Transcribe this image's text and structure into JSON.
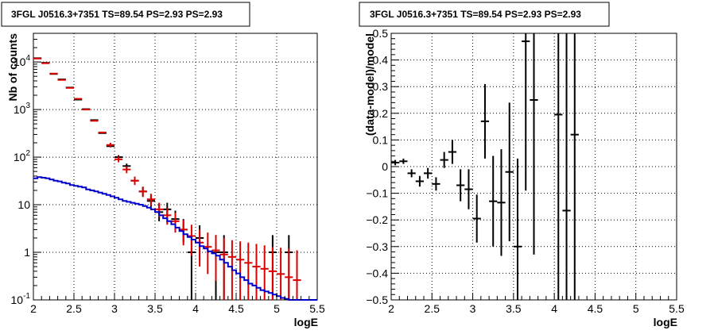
{
  "chart_data": [
    {
      "type": "scatter",
      "title": "3FGL J0516.3+7351 TS=89.54 PS=2.93 PS=2.93",
      "xlabel": "logE",
      "ylabel": "Nb of counts",
      "xlim": [
        2,
        5.5
      ],
      "ylim": [
        0.1,
        40000
      ],
      "yscale": "log",
      "grid": true,
      "x_ticks": [
        {
          "v": 2,
          "label": "2"
        },
        {
          "v": 2.5,
          "label": "2.5"
        },
        {
          "v": 3,
          "label": "3"
        },
        {
          "v": 3.5,
          "label": "3.5"
        },
        {
          "v": 4,
          "label": "4"
        },
        {
          "v": 4.5,
          "label": "4.5"
        },
        {
          "v": 5,
          "label": "5"
        },
        {
          "v": 5.5,
          "label": "5.5"
        }
      ],
      "y_ticks": [
        {
          "v": 0.1,
          "base": "10",
          "exp": "-1"
        },
        {
          "v": 1,
          "base": "1",
          "exp": ""
        },
        {
          "v": 10,
          "base": "10",
          "exp": ""
        },
        {
          "v": 100,
          "base": "10",
          "exp": "2"
        },
        {
          "v": 1000,
          "base": "10",
          "exp": "3"
        },
        {
          "v": 10000,
          "base": "10",
          "exp": "4"
        }
      ],
      "series": [
        {
          "role": "counts",
          "color": "#000000",
          "points": [
            {
              "x": 2.05,
              "y": 12000
            },
            {
              "x": 2.15,
              "y": 9600
            },
            {
              "x": 2.25,
              "y": 5600
            },
            {
              "x": 2.35,
              "y": 4300
            },
            {
              "x": 2.45,
              "y": 2900
            },
            {
              "x": 2.55,
              "y": 1620
            },
            {
              "x": 2.65,
              "y": 1020
            },
            {
              "x": 2.75,
              "y": 600
            },
            {
              "x": 2.85,
              "y": 320
            },
            {
              "x": 2.95,
              "y": 170
            },
            {
              "x": 3.05,
              "y": 100,
              "lo": 90,
              "hi": 110
            },
            {
              "x": 3.15,
              "y": 65,
              "lo": 57,
              "hi": 73
            },
            {
              "x": 3.25,
              "y": 32,
              "lo": 27,
              "hi": 37
            },
            {
              "x": 3.35,
              "y": 19,
              "lo": 15,
              "hi": 23.5
            },
            {
              "x": 3.45,
              "y": 12,
              "lo": 9,
              "hi": 15.5
            },
            {
              "x": 3.55,
              "y": 7,
              "lo": 4.5,
              "hi": 10
            },
            {
              "x": 3.65,
              "y": 8,
              "lo": 5.5,
              "hi": 11
            },
            {
              "x": 3.75,
              "y": 5,
              "lo": 3,
              "hi": 7.5
            },
            {
              "x": 3.85,
              "y": 3,
              "lo": 1.6,
              "hi": 5
            },
            {
              "x": 3.95,
              "y": 1,
              "lo": 0.1,
              "hi": 2.3
            },
            {
              "x": 4.05,
              "y": 2,
              "lo": 0.7,
              "hi": 3.7
            },
            {
              "x": 4.25,
              "y": 1,
              "lo": 0.1,
              "hi": 2.3
            },
            {
              "x": 4.35,
              "y": 1,
              "lo": 0.1,
              "hi": 2.3
            },
            {
              "x": 4.95,
              "y": 1,
              "lo": 0.1,
              "hi": 2.3
            },
            {
              "x": 5.15,
              "y": 1,
              "lo": 0.1,
              "hi": 2.3
            }
          ]
        },
        {
          "role": "model",
          "color": "#dd0000",
          "points": [
            {
              "x": 2.05,
              "y": 11800
            },
            {
              "x": 2.15,
              "y": 9400
            },
            {
              "x": 2.25,
              "y": 5700
            },
            {
              "x": 2.35,
              "y": 4200
            },
            {
              "x": 2.45,
              "y": 2850
            },
            {
              "x": 2.55,
              "y": 1680
            },
            {
              "x": 2.65,
              "y": 1000
            },
            {
              "x": 2.75,
              "y": 580
            },
            {
              "x": 2.85,
              "y": 330
            },
            {
              "x": 2.95,
              "y": 180,
              "lo": 160,
              "hi": 200
            },
            {
              "x": 3.05,
              "y": 90,
              "lo": 78,
              "hi": 104
            },
            {
              "x": 3.15,
              "y": 55,
              "lo": 46,
              "hi": 64
            },
            {
              "x": 3.25,
              "y": 32,
              "lo": 26,
              "hi": 39
            },
            {
              "x": 3.35,
              "y": 19,
              "lo": 14.5,
              "hi": 24
            },
            {
              "x": 3.45,
              "y": 13,
              "lo": 9.5,
              "hi": 17
            },
            {
              "x": 3.55,
              "y": 8,
              "lo": 5.5,
              "hi": 11
            },
            {
              "x": 3.65,
              "y": 6,
              "lo": 3.8,
              "hi": 8.5
            },
            {
              "x": 3.75,
              "y": 4.5,
              "lo": 2.6,
              "hi": 6.8
            },
            {
              "x": 3.85,
              "y": 3,
              "lo": 1.4,
              "hi": 4.8
            },
            {
              "x": 3.95,
              "y": 2.2,
              "lo": 0.85,
              "hi": 3.8
            },
            {
              "x": 4.05,
              "y": 1.6,
              "lo": 0.5,
              "hi": 3
            },
            {
              "x": 4.15,
              "y": 1.3,
              "lo": 0.35,
              "hi": 2.6
            },
            {
              "x": 4.25,
              "y": 1.1,
              "lo": 0.25,
              "hi": 2.3
            },
            {
              "x": 4.35,
              "y": 0.9,
              "lo": 0.1,
              "hi": 2.0
            },
            {
              "x": 4.45,
              "y": 0.8,
              "lo": 0.1,
              "hi": 1.8
            },
            {
              "x": 4.55,
              "y": 0.7,
              "lo": 0.1,
              "hi": 1.7
            },
            {
              "x": 4.65,
              "y": 0.6,
              "lo": 0.1,
              "hi": 1.6
            },
            {
              "x": 4.75,
              "y": 0.5,
              "lo": 0.1,
              "hi": 1.5
            },
            {
              "x": 4.85,
              "y": 0.45,
              "lo": 0.1,
              "hi": 1.4
            },
            {
              "x": 4.95,
              "y": 0.4,
              "lo": 0.1,
              "hi": 1.3
            },
            {
              "x": 5.05,
              "y": 0.35,
              "lo": 0.1,
              "hi": 1.25
            },
            {
              "x": 5.15,
              "y": 0.3,
              "lo": 0.1,
              "hi": 1.2
            },
            {
              "x": 5.25,
              "y": 0.26,
              "lo": 0.1,
              "hi": 1.1
            }
          ]
        },
        {
          "role": "background",
          "color": "#0000cc",
          "style": "step",
          "edges": [
            2.0,
            2.05,
            2.1,
            2.15,
            2.2,
            2.25,
            2.3,
            2.35,
            2.4,
            2.45,
            2.5,
            2.55,
            2.6,
            2.65,
            2.7,
            2.75,
            2.8,
            2.85,
            2.9,
            2.95,
            3.0,
            3.05,
            3.1,
            3.15,
            3.2,
            3.25,
            3.3,
            3.35,
            3.4,
            3.45,
            3.5,
            3.55,
            3.6,
            3.65,
            3.7,
            3.75,
            3.8,
            3.85,
            3.9,
            3.95,
            4.0,
            4.05,
            4.1,
            4.15,
            4.2,
            4.25,
            4.3,
            4.35,
            4.4,
            4.45,
            4.5,
            4.55,
            4.6,
            4.65,
            4.7,
            4.75,
            4.8,
            4.85,
            4.9,
            4.95,
            5.0,
            5.05,
            5.1,
            5.15,
            5.2,
            5.25,
            5.3,
            5.35,
            5.4,
            5.45,
            5.5
          ],
          "values": [
            36,
            38,
            37,
            36,
            34,
            32,
            31,
            29,
            28,
            26,
            25,
            24,
            23,
            21,
            20,
            19,
            18,
            17,
            16,
            15,
            14,
            13,
            12,
            11.5,
            11,
            10.5,
            10,
            9.4,
            8.7,
            8.0,
            7.0,
            6.0,
            5.2,
            4.5,
            3.9,
            3.3,
            2.8,
            2.4,
            2.1,
            1.85,
            1.6,
            1.35,
            1.2,
            1.05,
            0.95,
            0.85,
            0.7,
            0.6,
            0.5,
            0.42,
            0.36,
            0.3,
            0.26,
            0.22,
            0.2,
            0.18,
            0.16,
            0.15,
            0.14,
            0.13,
            0.12,
            0.11,
            0.105,
            0.1,
            0.1,
            0.1,
            0.1,
            0.1,
            0.1,
            0.1
          ]
        }
      ]
    },
    {
      "type": "scatter",
      "title": "3FGL J0516.3+7351 TS=89.54 PS=2.93 PS=2.93",
      "xlabel": "logE",
      "ylabel": "(data-model)/model",
      "xlim": [
        2,
        5.5
      ],
      "ylim": [
        -0.5,
        0.5
      ],
      "grid": true,
      "x_ticks": [
        {
          "v": 2,
          "label": "2"
        },
        {
          "v": 2.5,
          "label": "2.5"
        },
        {
          "v": 3,
          "label": "3"
        },
        {
          "v": 3.5,
          "label": "3.5"
        },
        {
          "v": 4,
          "label": "4"
        },
        {
          "v": 4.5,
          "label": "4.5"
        },
        {
          "v": 5,
          "label": "5"
        },
        {
          "v": 5.5,
          "label": "5.5"
        }
      ],
      "y_ticks": [
        {
          "v": -0.5,
          "label": "−0.5"
        },
        {
          "v": -0.4,
          "label": "−0.4"
        },
        {
          "v": -0.3,
          "label": "−0.3"
        },
        {
          "v": -0.2,
          "label": "−0.2"
        },
        {
          "v": -0.1,
          "label": "−0.1"
        },
        {
          "v": 0,
          "label": "0"
        },
        {
          "v": 0.1,
          "label": "0.1"
        },
        {
          "v": 0.2,
          "label": "0.2"
        },
        {
          "v": 0.3,
          "label": "0.3"
        },
        {
          "v": 0.4,
          "label": "0.4"
        },
        {
          "v": 0.5,
          "label": "0.5"
        }
      ],
      "series": [
        {
          "role": "residuals",
          "color": "#000000",
          "points": [
            {
              "x": 2.05,
              "y": 0.015,
              "e": 0.01
            },
            {
              "x": 2.15,
              "y": 0.02,
              "e": 0.01
            },
            {
              "x": 2.25,
              "y": -0.025,
              "e": 0.015
            },
            {
              "x": 2.35,
              "y": -0.055,
              "e": 0.02
            },
            {
              "x": 2.45,
              "y": -0.025,
              "e": 0.02
            },
            {
              "x": 2.55,
              "y": -0.065,
              "e": 0.025
            },
            {
              "x": 2.65,
              "y": 0.025,
              "e": 0.03
            },
            {
              "x": 2.75,
              "y": 0.055,
              "e": 0.045
            },
            {
              "x": 2.85,
              "y": -0.07,
              "e": 0.06
            },
            {
              "x": 2.95,
              "y": -0.085,
              "e": 0.075
            },
            {
              "x": 3.05,
              "y": -0.195,
              "e": 0.09
            },
            {
              "x": 3.15,
              "y": 0.17,
              "e": 0.14
            },
            {
              "x": 3.25,
              "y": -0.13,
              "e": 0.17
            },
            {
              "x": 3.35,
              "y": -0.135,
              "e": 0.2
            },
            {
              "x": 3.45,
              "y": -0.02,
              "e": 0.26
            },
            {
              "x": 3.55,
              "y": -0.3,
              "e": 0.33
            },
            {
              "x": 3.65,
              "y": 0.47,
              "e": 0.56
            },
            {
              "x": 3.75,
              "y": 0.25,
              "e": 0.58
            },
            {
              "x": 4.05,
              "y": 0.195,
              "e": 0.9
            },
            {
              "x": 4.15,
              "y": -0.165,
              "e": 0.95
            },
            {
              "x": 4.25,
              "y": 0.12,
              "e": 1.0
            }
          ]
        }
      ]
    }
  ]
}
